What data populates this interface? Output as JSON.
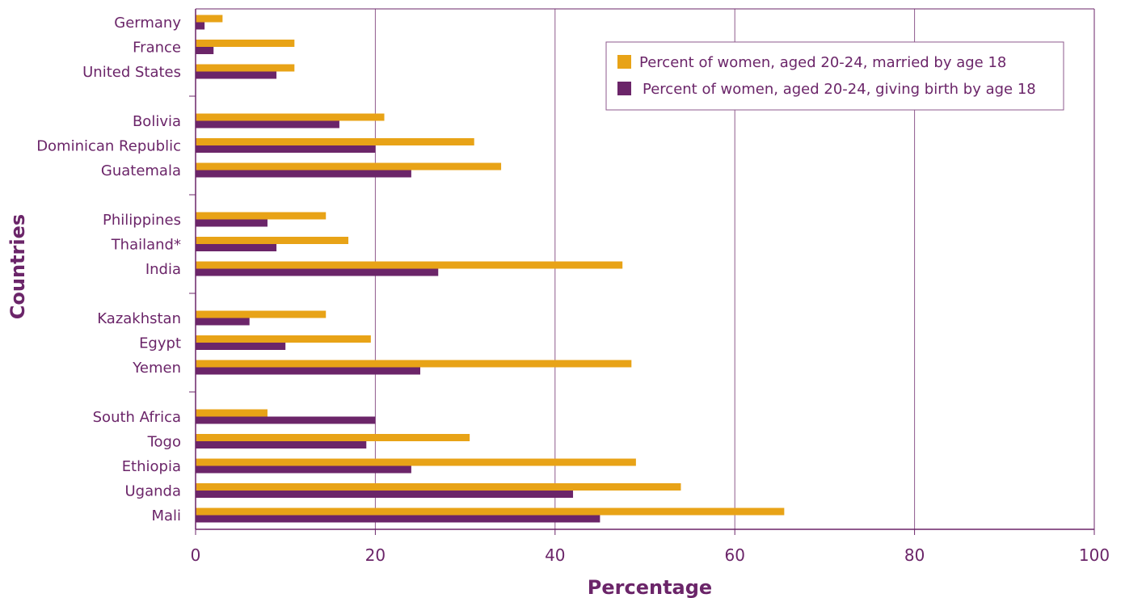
{
  "chart_data": {
    "type": "bar",
    "orientation": "horizontal",
    "xlabel": "Percentage",
    "ylabel": "Countries",
    "xlim": [
      0,
      100
    ],
    "xticks": [
      0,
      20,
      40,
      60,
      80,
      100
    ],
    "grid": "vertical",
    "legend_position": "top-right",
    "groups": [
      [
        "Germany",
        "France",
        "United States"
      ],
      [
        "Bolivia",
        "Dominican Republic",
        "Guatemala"
      ],
      [
        "Philippines",
        "Thailand*",
        "India"
      ],
      [
        "Kazakhstan",
        "Egypt",
        "Yemen"
      ],
      [
        "South Africa",
        "Togo",
        "Ethiopia",
        "Uganda",
        "Mali"
      ]
    ],
    "categories": [
      "Germany",
      "France",
      "United States",
      "Bolivia",
      "Dominican Republic",
      "Guatemala",
      "Philippines",
      "Thailand*",
      "India",
      "Kazakhstan",
      "Egypt",
      "Yemen",
      "South Africa",
      "Togo",
      "Ethiopia",
      "Uganda",
      "Mali"
    ],
    "series": [
      {
        "name": "Percent of women, aged 20-24, married by age 18",
        "color": "#e8a317",
        "values": [
          3,
          11,
          11,
          21,
          31,
          34,
          14.5,
          17,
          47.5,
          14.5,
          19.5,
          48.5,
          8,
          30.5,
          49,
          54,
          65.5
        ]
      },
      {
        "name": "Percent of women, aged 20-24, giving birth by age 18",
        "color": "#6b2569",
        "values": [
          1,
          2,
          9,
          16,
          20,
          24,
          8,
          9,
          27,
          6,
          10,
          25,
          20,
          19,
          24,
          42,
          45
        ]
      }
    ]
  },
  "colors": {
    "text": "#6b2569",
    "axis": "#6b2569",
    "grid": "#8e5a8c"
  }
}
